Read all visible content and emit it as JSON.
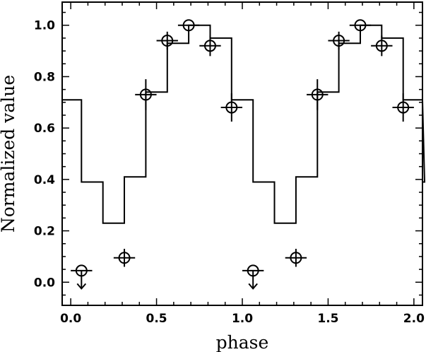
{
  "chart_data": {
    "type": "line",
    "title": "",
    "xlabel": "phase",
    "ylabel": "Normalized value",
    "xlim": [
      -0.05,
      2.05
    ],
    "ylim": [
      -0.09,
      1.09
    ],
    "grid": false,
    "legend": "none",
    "x_ticks": [
      0.0,
      0.5,
      1.0,
      1.5,
      2.0
    ],
    "x_tick_labels": [
      "0.0",
      "0.5",
      "1.0",
      "1.5",
      "2.0"
    ],
    "y_ticks": [
      0.0,
      0.2,
      0.4,
      0.6,
      0.8,
      1.0
    ],
    "y_tick_labels": [
      "0.0",
      "0.2",
      "0.4",
      "0.6",
      "0.8",
      "1.0"
    ],
    "series": [
      {
        "style": "step",
        "bin_width": 0.125,
        "x_start": -0.0625,
        "values": [
          0.71,
          0.39,
          0.23,
          0.41,
          0.74,
          0.93,
          1.0,
          0.95,
          0.71,
          0.39,
          0.23,
          0.41,
          0.74,
          0.93,
          1.0,
          0.95,
          0.71,
          0.39
        ]
      },
      {
        "style": "points",
        "x": [
          0.0625,
          0.3125,
          0.4375,
          0.5625,
          0.6875,
          0.8125,
          0.9375,
          1.0625,
          1.3125,
          1.4375,
          1.5625,
          1.6875,
          1.8125,
          1.9375
        ],
        "y": [
          0.045,
          0.095,
          0.73,
          0.94,
          1.0,
          0.92,
          0.68,
          0.045,
          0.095,
          0.73,
          0.94,
          1.0,
          0.92,
          0.68
        ],
        "x_err": 0.0625,
        "y_err": [
          0.0,
          0.035,
          0.06,
          0.035,
          0.0,
          0.04,
          0.055,
          0.0,
          0.035,
          0.06,
          0.035,
          0.0,
          0.04,
          0.055
        ],
        "upper_limit": [
          true,
          false,
          false,
          false,
          false,
          false,
          false,
          true,
          false,
          false,
          false,
          false,
          false,
          false
        ]
      }
    ]
  }
}
